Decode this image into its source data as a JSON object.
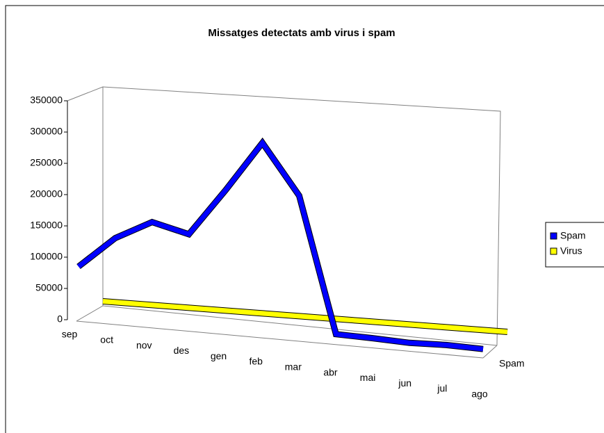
{
  "chart_data": {
    "type": "line",
    "title": "Missatges detectats amb virus i spam",
    "categories": [
      "sep",
      "oct",
      "nov",
      "des",
      "gen",
      "feb",
      "mar",
      "abr",
      "mai",
      "jun",
      "jul",
      "ago"
    ],
    "series": [
      {
        "name": "Spam",
        "color": "#0000ff",
        "values": [
          85000,
          135000,
          165000,
          150000,
          225000,
          305000,
          225000,
          8000,
          6000,
          3000,
          4000,
          2000
        ]
      },
      {
        "name": "Virus",
        "color": "#ffff00",
        "values": [
          5000,
          5000,
          5000,
          5000,
          5000,
          5000,
          5000,
          5000,
          5000,
          5000,
          5000,
          5000
        ]
      }
    ],
    "depth_categories": [
      "Spam"
    ],
    "ylim": [
      0,
      350000
    ],
    "yticks": [
      0,
      50000,
      100000,
      150000,
      200000,
      250000,
      300000,
      350000
    ],
    "legend": "right"
  }
}
